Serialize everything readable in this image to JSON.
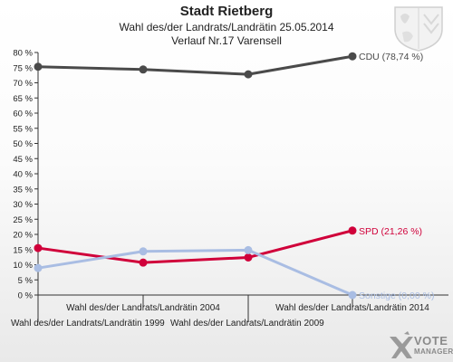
{
  "header": {
    "title": "Stadt Rietberg",
    "subtitle_line1": "Wahl des/der Landrats/Landrätin 25.05.2014",
    "subtitle_line2": "Verlauf Nr.17 Varensell"
  },
  "logo": {
    "line1": "VOTE",
    "line2": "MANAGER"
  },
  "chart_data": {
    "type": "line",
    "categories": [
      "Wahl des/der Landrats/Landrätin 1999",
      "Wahl des/der Landrats/Landrätin 2004",
      "Wahl des/der Landrats/Landrätin 2009",
      "Wahl des/der Landrats/Landrätin 2014"
    ],
    "ylim": [
      0,
      80
    ],
    "yticks": [
      "0 %",
      "5 %",
      "10 %",
      "15 %",
      "20 %",
      "25 %",
      "30 %",
      "35 %",
      "40 %",
      "45 %",
      "50 %",
      "55 %",
      "60 %",
      "65 %",
      "70 %",
      "75 %",
      "80 %"
    ],
    "grid": false,
    "series": [
      {
        "name": "CDU",
        "end_label": "CDU (78,74 %)",
        "color": "#4a4a4a",
        "values": [
          75.3,
          74.4,
          72.8,
          78.74
        ]
      },
      {
        "name": "SPD",
        "end_label": "SPD (21,26 %)",
        "color": "#d0003a",
        "values": [
          15.5,
          10.7,
          12.4,
          21.26
        ]
      },
      {
        "name": "Sonstige",
        "end_label": "Sonstige (0,00 %)",
        "color": "#a9bde3",
        "values": [
          8.9,
          14.4,
          14.8,
          0.0
        ]
      }
    ]
  }
}
